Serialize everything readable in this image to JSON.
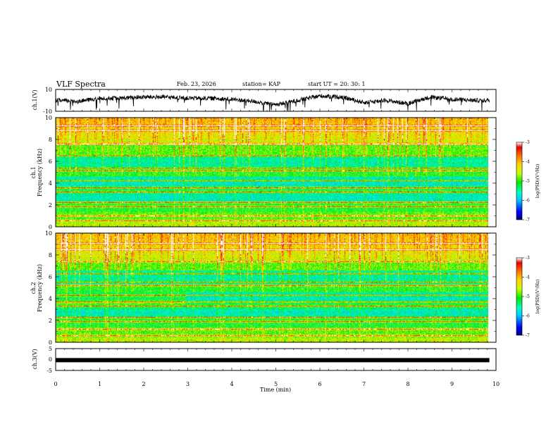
{
  "header": {
    "title": "VLF Spectra",
    "date": "Feb. 23, 2026",
    "station": "station= KAP",
    "start": "start  UT  =   20: 30: 1"
  },
  "chart_data": [
    {
      "type": "line",
      "id": "ch1-waveform",
      "ylabel": "ch.1(V)",
      "ylim": [
        -10,
        10
      ],
      "y_ticks": [
        "10",
        "-10"
      ],
      "x_range_min": [
        0,
        9.85
      ],
      "mean_trace_x_min": [
        0,
        0.5,
        1,
        1.5,
        2,
        2.5,
        3,
        3.5,
        4,
        4.5,
        5,
        5.5,
        6,
        6.5,
        7,
        7.5,
        8,
        8.5,
        9,
        9.5,
        9.85
      ],
      "mean_trace_y_v": [
        0,
        -1,
        2,
        2,
        3,
        3,
        2,
        2,
        1,
        -1,
        -4,
        0,
        4,
        3,
        -2,
        0,
        -3,
        3,
        1,
        0,
        0
      ],
      "color": "#000000"
    },
    {
      "type": "heatmap",
      "id": "ch1-spectrogram",
      "ylabel": "ch.1",
      "ylabel2": "Frequency (kHz)",
      "ylim": [
        0,
        10
      ],
      "y_ticks": [
        "0",
        "2",
        "4",
        "6",
        "8",
        "10"
      ],
      "xlim_min": [
        0,
        9.85
      ],
      "colorbar": {
        "label": "log(PSD)(V²/Hz)",
        "ticks": [
          "-3",
          "-4",
          "-5",
          "-6",
          "-7"
        ],
        "range": [
          -7,
          -3
        ]
      }
    },
    {
      "type": "heatmap",
      "id": "ch2-spectrogram",
      "ylabel": "ch.2",
      "ylabel2": "Frequency (kHz)",
      "ylim": [
        0,
        10
      ],
      "y_ticks": [
        "0",
        "2",
        "4",
        "6",
        "8",
        "10"
      ],
      "xlim_min": [
        0,
        9.85
      ],
      "colorbar": {
        "label": "log(PSD)(V²/Hz)",
        "ticks": [
          "-3",
          "-4",
          "-5",
          "-6",
          "-7"
        ],
        "range": [
          -7,
          -3
        ]
      }
    },
    {
      "type": "line",
      "id": "ch3-waveform",
      "ylabel": "ch.3(V)",
      "ylim": [
        -5,
        5
      ],
      "y_ticks": [
        "5",
        "0",
        "-5"
      ],
      "trace_value_v": -0.3,
      "x_range_min": [
        0,
        9.85
      ],
      "color": "#000000"
    }
  ],
  "xaxis": {
    "label": "Time  (min)",
    "xlim": [
      0,
      10
    ],
    "ticks": [
      "0",
      "1",
      "2",
      "3",
      "4",
      "5",
      "6",
      "7",
      "8",
      "9",
      "10"
    ]
  },
  "colors": {
    "background": "#ffffff",
    "axes": "#000000",
    "colormap": [
      "#000080",
      "#0000ff",
      "#00c8ff",
      "#00ffc8",
      "#00e600",
      "#c8ff00",
      "#ffd200",
      "#ff6400",
      "#e60000",
      "#ffffff"
    ]
  }
}
